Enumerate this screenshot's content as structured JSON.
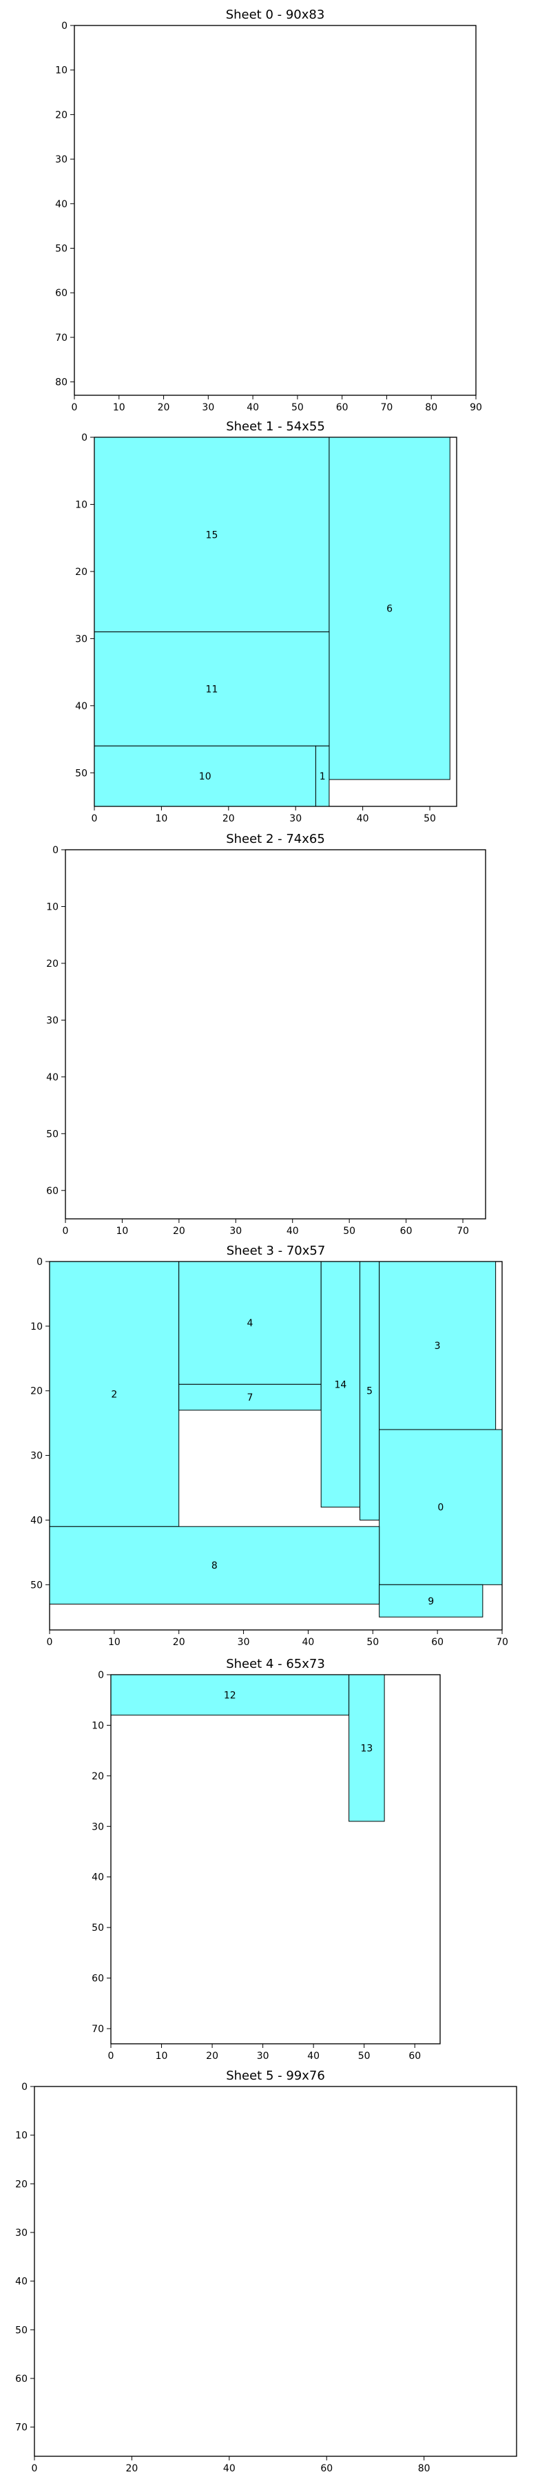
{
  "colors": {
    "piece_fill": "#80ffff",
    "frame": "#000000",
    "background": "#ffffff"
  },
  "chart_data": [
    {
      "type": "rect-layout",
      "title": "Sheet 0 - 90x83",
      "xlim": [
        0,
        90
      ],
      "ylim": [
        83,
        0
      ],
      "xticks": [
        0,
        10,
        20,
        30,
        40,
        50,
        60,
        70,
        80,
        90
      ],
      "yticks": [
        0,
        10,
        20,
        30,
        40,
        50,
        60,
        70,
        80
      ],
      "rects": []
    },
    {
      "type": "rect-layout",
      "title": "Sheet 1 - 54x55",
      "xlim": [
        0,
        54
      ],
      "ylim": [
        55,
        0
      ],
      "xticks": [
        0,
        10,
        20,
        30,
        40,
        50
      ],
      "yticks": [
        0,
        10,
        20,
        30,
        40,
        50
      ],
      "rects": [
        {
          "label": "15",
          "x": 0,
          "y": 0,
          "w": 35,
          "h": 29
        },
        {
          "label": "6",
          "x": 35,
          "y": 0,
          "w": 18,
          "h": 51
        },
        {
          "label": "11",
          "x": 0,
          "y": 29,
          "w": 35,
          "h": 17
        },
        {
          "label": "10",
          "x": 0,
          "y": 46,
          "w": 33,
          "h": 9
        },
        {
          "label": "1",
          "x": 33,
          "y": 46,
          "w": 2,
          "h": 9
        }
      ]
    },
    {
      "type": "rect-layout",
      "title": "Sheet 2 - 74x65",
      "xlim": [
        0,
        74
      ],
      "ylim": [
        65,
        0
      ],
      "xticks": [
        0,
        10,
        20,
        30,
        40,
        50,
        60,
        70
      ],
      "yticks": [
        0,
        10,
        20,
        30,
        40,
        50,
        60
      ],
      "rects": []
    },
    {
      "type": "rect-layout",
      "title": "Sheet 3 - 70x57",
      "xlim": [
        0,
        70
      ],
      "ylim": [
        57,
        0
      ],
      "xticks": [
        0,
        10,
        20,
        30,
        40,
        50,
        60,
        70
      ],
      "yticks": [
        0,
        10,
        20,
        30,
        40,
        50
      ],
      "rects": [
        {
          "label": "2",
          "x": 0,
          "y": 0,
          "w": 20,
          "h": 41
        },
        {
          "label": "4",
          "x": 20,
          "y": 0,
          "w": 22,
          "h": 19
        },
        {
          "label": "7",
          "x": 20,
          "y": 19,
          "w": 22,
          "h": 4
        },
        {
          "label": "14",
          "x": 42,
          "y": 0,
          "w": 6,
          "h": 38
        },
        {
          "label": "5",
          "x": 48,
          "y": 0,
          "w": 3,
          "h": 40
        },
        {
          "label": "3",
          "x": 51,
          "y": 0,
          "w": 18,
          "h": 26
        },
        {
          "label": "0",
          "x": 51,
          "y": 26,
          "w": 19,
          "h": 24
        },
        {
          "label": "8",
          "x": 0,
          "y": 41,
          "w": 51,
          "h": 12
        },
        {
          "label": "9",
          "x": 51,
          "y": 50,
          "w": 16,
          "h": 5
        }
      ]
    },
    {
      "type": "rect-layout",
      "title": "Sheet 4 - 65x73",
      "xlim": [
        0,
        65
      ],
      "ylim": [
        73,
        0
      ],
      "xticks": [
        0,
        10,
        20,
        30,
        40,
        50,
        60
      ],
      "yticks": [
        0,
        10,
        20,
        30,
        40,
        50,
        60,
        70
      ],
      "rects": [
        {
          "label": "12",
          "x": 0,
          "y": 0,
          "w": 47,
          "h": 8
        },
        {
          "label": "13",
          "x": 47,
          "y": 0,
          "w": 7,
          "h": 29
        }
      ]
    },
    {
      "type": "rect-layout",
      "title": "Sheet 5 - 99x76",
      "xlim": [
        0,
        99
      ],
      "ylim": [
        76,
        0
      ],
      "xticks": [
        0,
        20,
        40,
        60,
        80
      ],
      "yticks": [
        0,
        10,
        20,
        30,
        40,
        50,
        60,
        70
      ],
      "rects": []
    }
  ]
}
